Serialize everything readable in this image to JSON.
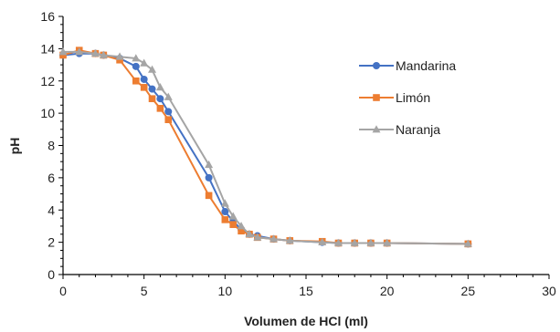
{
  "chart_data": {
    "type": "line",
    "xlabel": "Volumen de HCl (ml)",
    "ylabel": "pH",
    "xlim": [
      0,
      30
    ],
    "ylim": [
      0,
      16
    ],
    "xticks": [
      0,
      5,
      10,
      15,
      20,
      25,
      30
    ],
    "yticks": [
      0,
      2,
      4,
      6,
      8,
      10,
      12,
      14,
      16
    ],
    "grid": false,
    "legend_position": "right",
    "series": [
      {
        "name": "Mandarina",
        "color": "#4472C4",
        "marker": "circle",
        "points": [
          [
            0,
            13.6
          ],
          [
            1,
            13.7
          ],
          [
            2,
            13.7
          ],
          [
            2.5,
            13.6
          ],
          [
            3.5,
            13.4
          ],
          [
            4.5,
            12.9
          ],
          [
            5,
            12.1
          ],
          [
            5.5,
            11.5
          ],
          [
            6,
            10.9
          ],
          [
            6.5,
            10.1
          ],
          [
            9,
            6.0
          ],
          [
            10,
            3.9
          ],
          [
            10.5,
            3.3
          ],
          [
            11,
            2.8
          ],
          [
            11.5,
            2.5
          ],
          [
            12,
            2.4
          ],
          [
            13,
            2.2
          ],
          [
            14,
            2.1
          ],
          [
            16,
            2.0
          ],
          [
            17,
            1.95
          ],
          [
            18,
            1.95
          ],
          [
            19,
            1.95
          ],
          [
            20,
            1.95
          ],
          [
            25,
            1.9
          ]
        ]
      },
      {
        "name": "Limón",
        "color": "#ED7D31",
        "marker": "square",
        "points": [
          [
            0,
            13.6
          ],
          [
            1,
            13.9
          ],
          [
            2,
            13.7
          ],
          [
            2.5,
            13.6
          ],
          [
            3.5,
            13.3
          ],
          [
            4.5,
            12.0
          ],
          [
            5,
            11.6
          ],
          [
            5.5,
            10.9
          ],
          [
            6,
            10.3
          ],
          [
            6.5,
            9.6
          ],
          [
            9,
            4.9
          ],
          [
            10,
            3.4
          ],
          [
            10.5,
            3.1
          ],
          [
            11,
            2.7
          ],
          [
            11.5,
            2.5
          ],
          [
            12,
            2.3
          ],
          [
            13,
            2.2
          ],
          [
            14,
            2.1
          ],
          [
            16,
            2.05
          ],
          [
            17,
            1.95
          ],
          [
            18,
            1.95
          ],
          [
            19,
            1.95
          ],
          [
            20,
            1.95
          ],
          [
            25,
            1.9
          ]
        ]
      },
      {
        "name": "Naranja",
        "color": "#A5A5A5",
        "marker": "triangle",
        "points": [
          [
            0,
            13.8
          ],
          [
            1,
            13.8
          ],
          [
            2,
            13.7
          ],
          [
            2.5,
            13.6
          ],
          [
            3.5,
            13.5
          ],
          [
            4.5,
            13.4
          ],
          [
            5,
            13.1
          ],
          [
            5.5,
            12.7
          ],
          [
            6,
            11.6
          ],
          [
            6.5,
            11.0
          ],
          [
            9,
            6.8
          ],
          [
            10,
            4.4
          ],
          [
            10.5,
            3.6
          ],
          [
            11,
            3.0
          ],
          [
            11.5,
            2.5
          ],
          [
            12,
            2.3
          ],
          [
            13,
            2.2
          ],
          [
            14,
            2.1
          ],
          [
            16,
            2.0
          ],
          [
            17,
            1.95
          ],
          [
            18,
            1.95
          ],
          [
            19,
            1.95
          ],
          [
            20,
            1.95
          ],
          [
            25,
            1.9
          ]
        ]
      }
    ]
  }
}
